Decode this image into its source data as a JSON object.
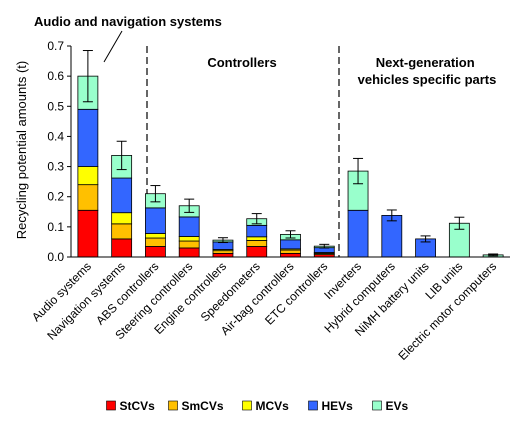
{
  "chart_data": {
    "type": "bar",
    "stacked": true,
    "ylabel": "Recycling potential amounts (t)",
    "ylim": [
      0,
      0.7
    ],
    "yticks": [
      "0.0",
      "0.1",
      "0.2",
      "0.3",
      "0.4",
      "0.5",
      "0.6",
      "0.7"
    ],
    "grid": false,
    "legend_position": "bottom",
    "categories": [
      "Audio systems",
      "Navigation systems",
      "ABS controllers",
      "Steering controllers",
      "Engine controllers",
      "Speedometers",
      "Air-bag controllers",
      "ETC controllers",
      "Inverters",
      "Hybrid computers",
      "NiMH battery units",
      "LIB units",
      "Electric motor computers"
    ],
    "series": [
      {
        "name": "StCVs",
        "color": "#ff0000",
        "values": [
          0.155,
          0.06,
          0.035,
          0.03,
          0.012,
          0.035,
          0.012,
          0.008,
          0,
          0,
          0,
          0,
          0
        ]
      },
      {
        "name": "SmCVs",
        "color": "#ffc000",
        "values": [
          0.085,
          0.05,
          0.028,
          0.023,
          0.009,
          0.02,
          0.011,
          0.004,
          0,
          0,
          0,
          0,
          0
        ]
      },
      {
        "name": "MCVs",
        "color": "#ffff00",
        "values": [
          0.06,
          0.037,
          0.015,
          0.015,
          0.004,
          0.012,
          0.004,
          0.003,
          0,
          0,
          0,
          0,
          0
        ]
      },
      {
        "name": "HEVs",
        "color": "#3366ff",
        "values": [
          0.19,
          0.115,
          0.085,
          0.065,
          0.025,
          0.038,
          0.03,
          0.016,
          0.155,
          0.138,
          0.06,
          0,
          0
        ]
      },
      {
        "name": "EVs",
        "color": "#99ffcc",
        "values": [
          0.11,
          0.075,
          0.047,
          0.037,
          0.006,
          0.022,
          0.018,
          0.005,
          0.13,
          0,
          0,
          0.112,
          0.007
        ]
      }
    ],
    "error_bars": [
      0.085,
      0.047,
      0.027,
      0.022,
      0.008,
      0.017,
      0.012,
      0.006,
      0.042,
      0.018,
      0.01,
      0.02,
      0.003
    ],
    "groups": [
      {
        "label": "Audio and navigation systems"
      },
      {
        "label": "Controllers"
      },
      {
        "label": "Next-generation vehicles specific parts",
        "label_lines": [
          "Next-generation",
          "vehicles specific parts"
        ]
      }
    ]
  }
}
